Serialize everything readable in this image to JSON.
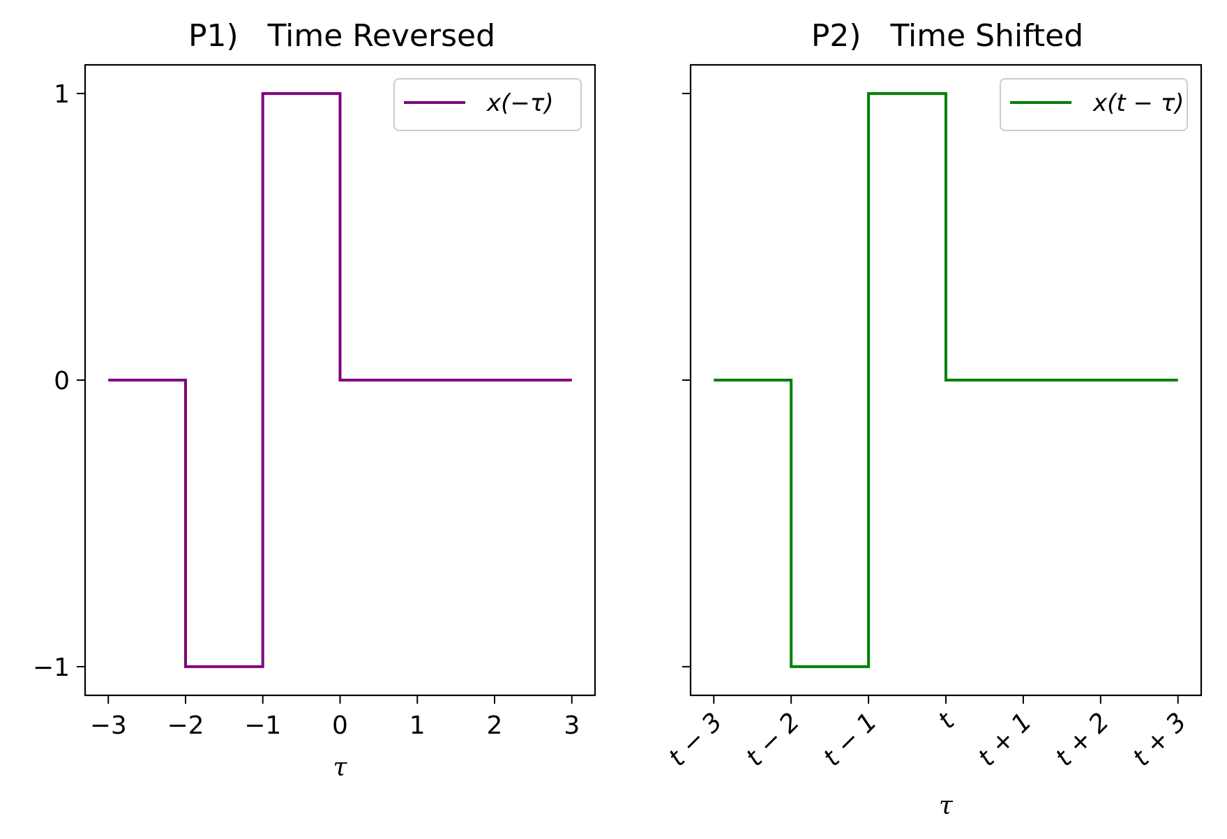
{
  "chart_data": [
    {
      "type": "line",
      "title": "P1)   Time Reversed",
      "xlabel": "τ",
      "ylabel": "",
      "xlim": [
        -3.3,
        3.3
      ],
      "ylim": [
        -1.1,
        1.1
      ],
      "x_ticks": [
        -3,
        -2,
        -1,
        0,
        1,
        2,
        3
      ],
      "x_tick_labels": [
        "−3",
        "−2",
        "−1",
        "0",
        "1",
        "2",
        "3"
      ],
      "y_ticks": [
        -1,
        0,
        1
      ],
      "y_tick_labels": [
        "−1",
        "0",
        "1"
      ],
      "grid": false,
      "legend_position": "upper right",
      "series": [
        {
          "name": "x(−τ)",
          "color": "#800080",
          "x": [
            -3,
            -2,
            -2,
            -1,
            -1,
            0,
            0,
            3
          ],
          "y": [
            0,
            0,
            -1,
            -1,
            1,
            1,
            0,
            0
          ]
        }
      ]
    },
    {
      "type": "line",
      "title": "P2)   Time Shifted",
      "xlabel": "τ",
      "ylabel": "",
      "xlim": [
        -3.3,
        3.3
      ],
      "ylim": [
        -1.1,
        1.1
      ],
      "x_ticks": [
        -3,
        -2,
        -1,
        0,
        1,
        2,
        3
      ],
      "x_tick_labels": [
        "t − 3",
        "t − 2",
        "t − 1",
        "t",
        "t + 1",
        "t + 2",
        "t + 3"
      ],
      "x_tick_rotation": -45,
      "y_ticks": [
        -1,
        0,
        1
      ],
      "y_tick_labels": [
        "",
        "",
        ""
      ],
      "grid": false,
      "legend_position": "upper right",
      "series": [
        {
          "name": "x(t − τ)",
          "color": "#008000",
          "x": [
            -3,
            -2,
            -2,
            -1,
            -1,
            0,
            0,
            3
          ],
          "y": [
            0,
            0,
            -1,
            -1,
            1,
            1,
            0,
            0
          ]
        }
      ]
    }
  ]
}
